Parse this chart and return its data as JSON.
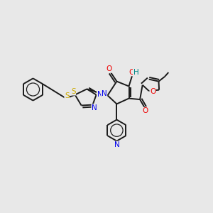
{
  "background_color": "#e8e8e8",
  "bond_color": "#1a1a1a",
  "atom_colors": {
    "N": "#0000ee",
    "O": "#ee0000",
    "S": "#ccaa00",
    "H": "#008888",
    "C": "#1a1a1a"
  },
  "figsize": [
    3.0,
    3.0
  ],
  "dpi": 100,
  "lw": 1.4
}
